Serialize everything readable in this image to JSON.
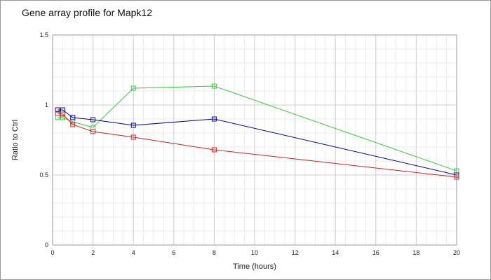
{
  "chart_data": {
    "type": "line",
    "title": "Gene array profile for Mapk12",
    "xlabel": "Time (hours)",
    "ylabel": "Ratio to Ctrl",
    "xlim": [
      0,
      20
    ],
    "ylim": [
      0,
      1.5
    ],
    "xticks": [
      0,
      2,
      4,
      6,
      8,
      10,
      12,
      14,
      16,
      18,
      20
    ],
    "yticks": [
      0,
      0.5,
      1,
      1.5
    ],
    "ytick_labels": [
      "0",
      "0.5",
      "1",
      "1.5"
    ],
    "grid": true,
    "legend": "none",
    "series": [
      {
        "color": "#33cc33",
        "x": [
          0.25,
          0.5,
          1,
          2,
          4,
          8,
          20
        ],
        "y": [
          0.91,
          0.91,
          0.88,
          0.84,
          1.12,
          1.135,
          0.53
        ]
      },
      {
        "color": "#000099",
        "x": [
          0.25,
          0.5,
          1,
          2,
          4,
          8,
          20
        ],
        "y": [
          0.965,
          0.965,
          0.91,
          0.895,
          0.855,
          0.9,
          0.5
        ]
      },
      {
        "color": "#cc2222",
        "x": [
          0.25,
          0.5,
          1,
          2,
          4,
          8,
          20
        ],
        "y": [
          0.94,
          0.935,
          0.86,
          0.81,
          0.77,
          0.68,
          0.485
        ]
      }
    ]
  }
}
